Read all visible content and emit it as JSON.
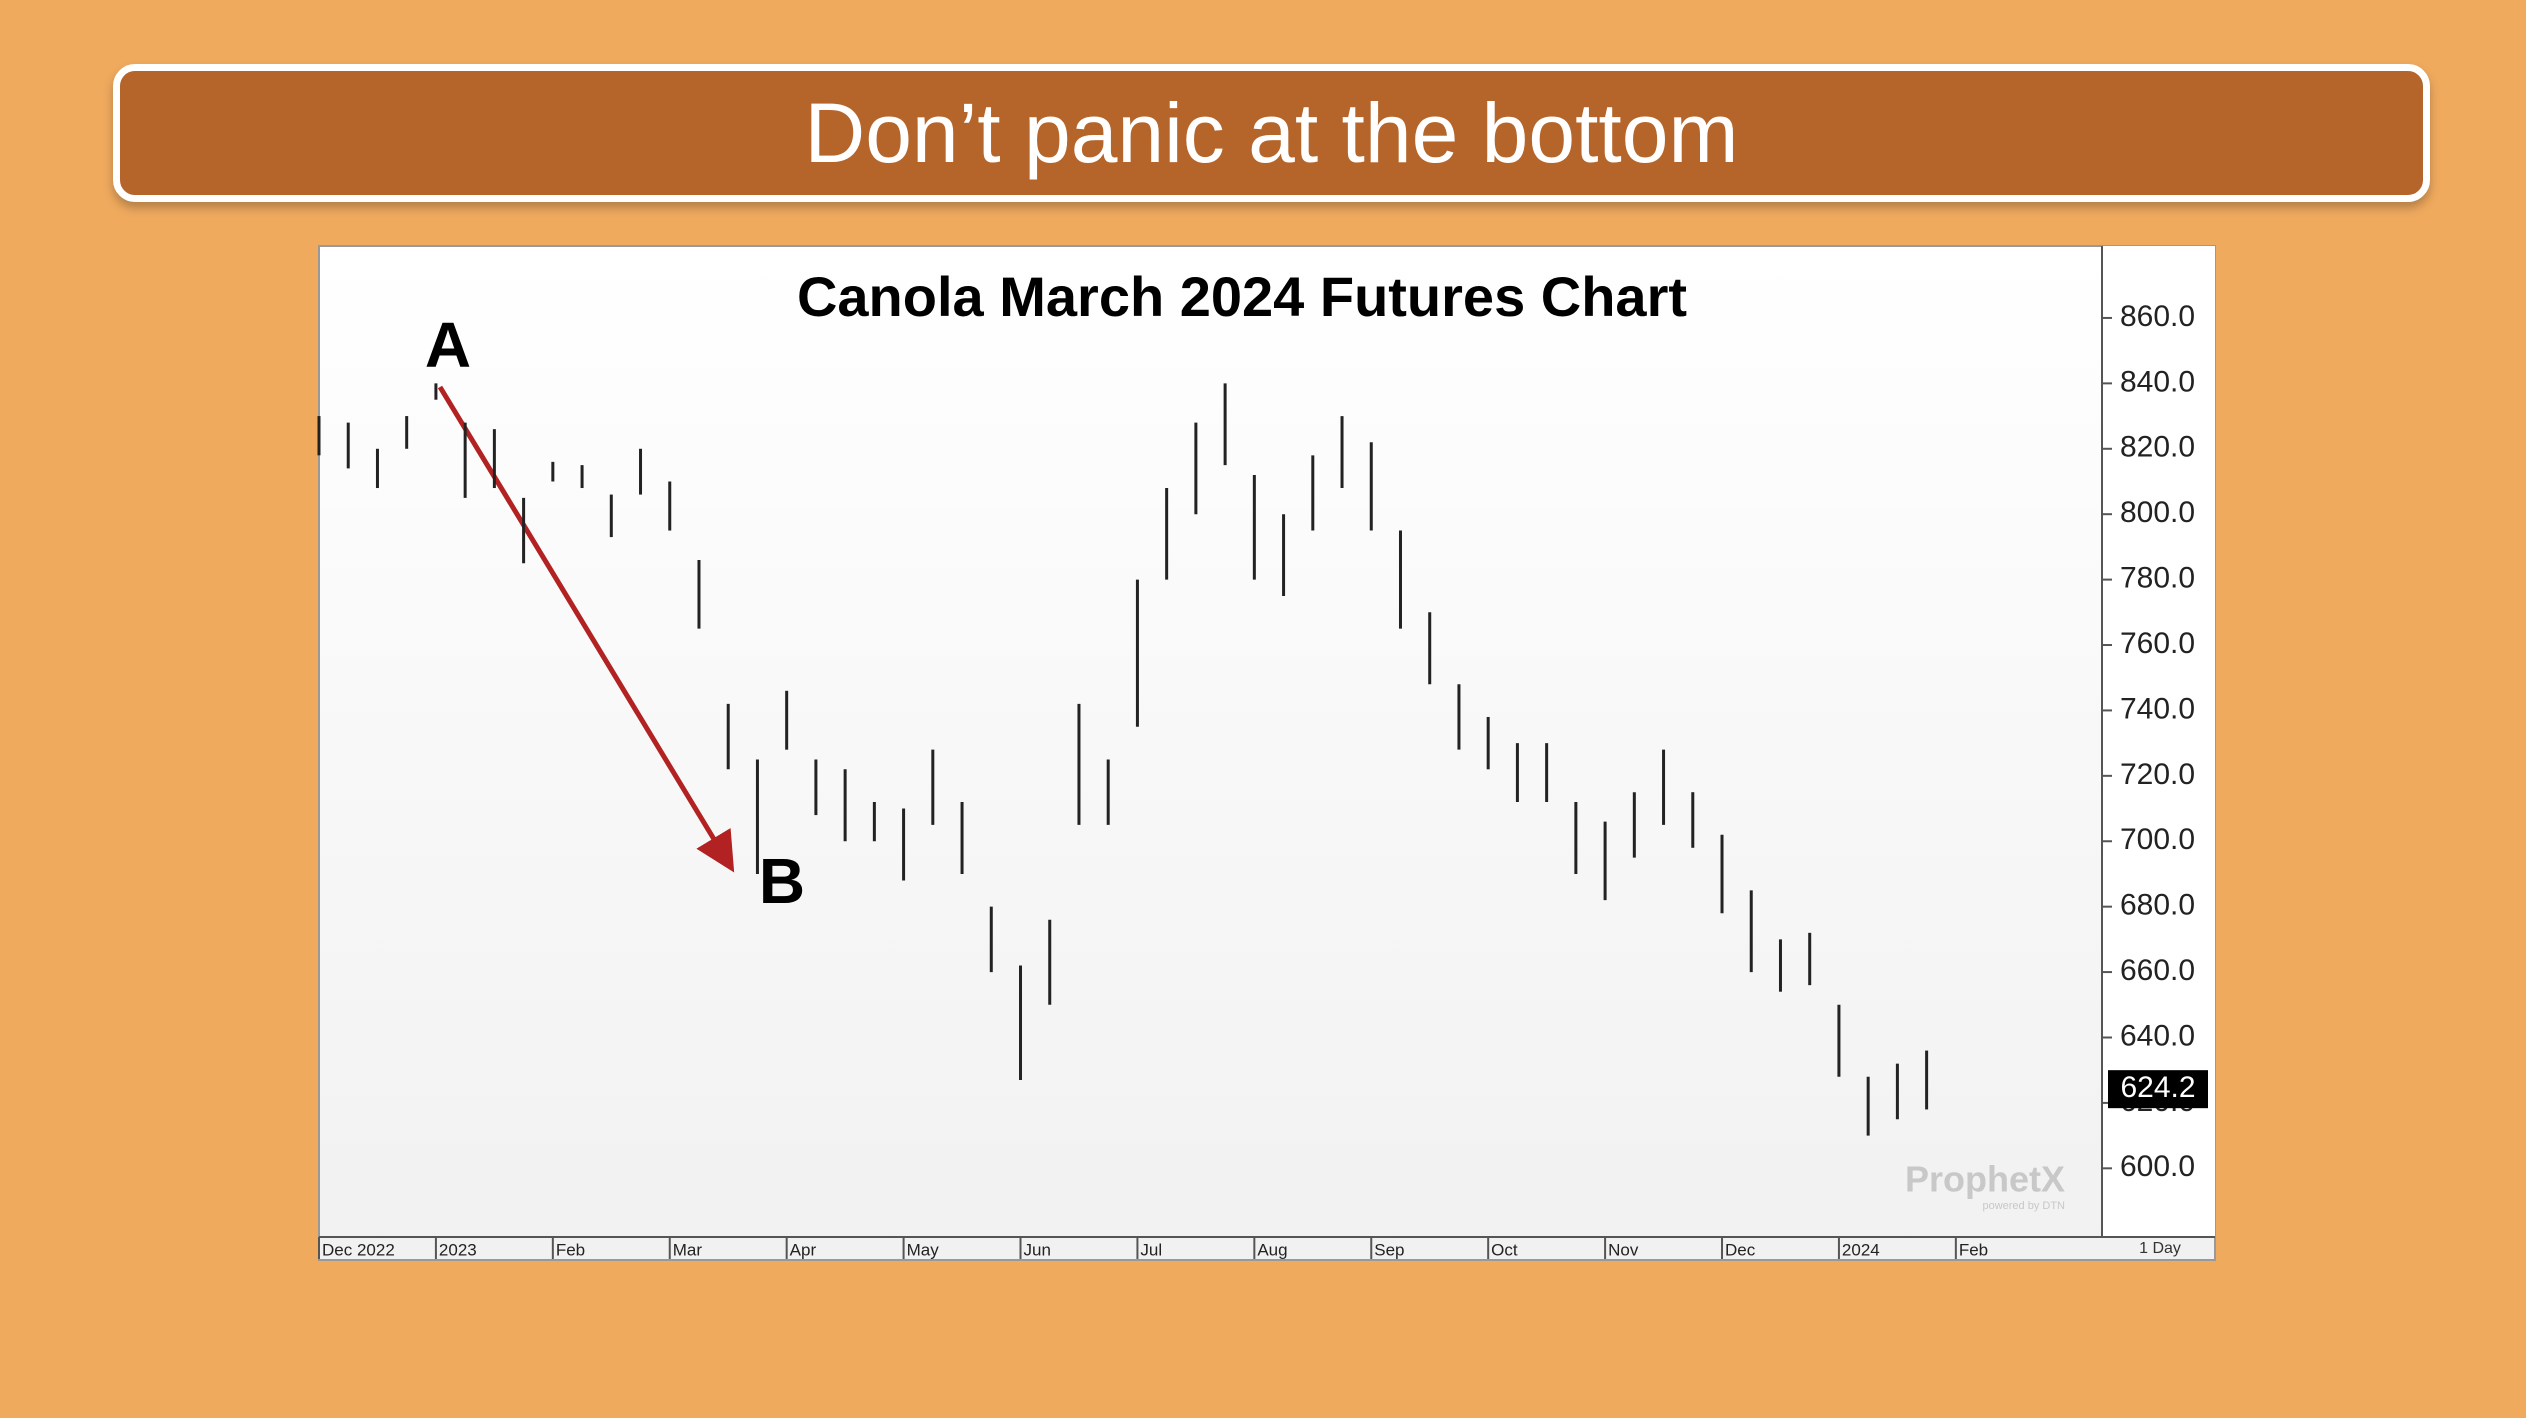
{
  "header": {
    "title": "Don’t panic at the bottom"
  },
  "chart_data": {
    "type": "ohlc",
    "title": "Canola March 2024 Futures Chart",
    "annotations": [
      "A",
      "B"
    ],
    "watermark": "ProphetX",
    "watermark_sub": "powered by DTN",
    "interval": "1 Day",
    "last_value": 624.2,
    "color": "#222222",
    "x": [
      0,
      0.25,
      0.5,
      0.75,
      1,
      1.25,
      1.5,
      1.75,
      2,
      2.25,
      2.5,
      2.75,
      3,
      3.25,
      3.5,
      3.75,
      4,
      4.25,
      4.5,
      4.75,
      5,
      5.25,
      5.5,
      5.75,
      6,
      6.25,
      6.5,
      6.75,
      7,
      7.25,
      7.5,
      7.75,
      8,
      8.25,
      8.5,
      8.75,
      9,
      9.25,
      9.5,
      9.75,
      10,
      10.25,
      10.5,
      10.75,
      11,
      11.25,
      11.5,
      11.75,
      12,
      12.25,
      12.5,
      12.75,
      13,
      13.25,
      13.5,
      13.75
    ],
    "high": [
      830,
      828,
      820,
      830,
      840,
      828,
      826,
      805,
      816,
      815,
      806,
      820,
      810,
      786,
      742,
      725,
      746,
      725,
      722,
      712,
      710,
      728,
      712,
      680,
      662,
      676,
      742,
      725,
      780,
      808,
      828,
      840,
      812,
      800,
      818,
      830,
      822,
      795,
      770,
      748,
      738,
      730,
      730,
      712,
      706,
      715,
      728,
      715,
      702,
      685,
      670,
      672,
      650,
      628,
      632,
      636
    ],
    "low": [
      818,
      814,
      808,
      820,
      835,
      805,
      808,
      785,
      810,
      808,
      793,
      806,
      795,
      765,
      722,
      690,
      728,
      708,
      700,
      700,
      688,
      705,
      690,
      660,
      627,
      650,
      705,
      705,
      735,
      780,
      800,
      815,
      780,
      775,
      795,
      808,
      795,
      765,
      748,
      728,
      722,
      712,
      712,
      690,
      682,
      695,
      705,
      698,
      678,
      660,
      654,
      656,
      628,
      610,
      615,
      618
    ],
    "xlim": [
      0,
      15.25
    ],
    "xticks": [
      {
        "value": 0,
        "label": "Dec 2022"
      },
      {
        "value": 1,
        "label": "2023"
      },
      {
        "value": 2,
        "label": "Feb"
      },
      {
        "value": 3,
        "label": "Mar"
      },
      {
        "value": 4,
        "label": "Apr"
      },
      {
        "value": 5,
        "label": "May"
      },
      {
        "value": 6,
        "label": "Jun"
      },
      {
        "value": 7,
        "label": "Jul"
      },
      {
        "value": 8,
        "label": "Aug"
      },
      {
        "value": 9,
        "label": "Sep"
      },
      {
        "value": 10,
        "label": "Oct"
      },
      {
        "value": 11,
        "label": "Nov"
      },
      {
        "value": 12,
        "label": "Dec"
      },
      {
        "value": 13,
        "label": "2024"
      },
      {
        "value": 14,
        "label": "Feb"
      }
    ],
    "ylim": [
      579,
      882
    ],
    "yticks": [
      {
        "value": 600,
        "label": "600.0"
      },
      {
        "value": 620,
        "label": "620.0"
      },
      {
        "value": 640,
        "label": "640.0"
      },
      {
        "value": 660,
        "label": "660.0"
      },
      {
        "value": 680,
        "label": "680.0"
      },
      {
        "value": 700,
        "label": "700.0"
      },
      {
        "value": 720,
        "label": "720.0"
      },
      {
        "value": 740,
        "label": "740.0"
      },
      {
        "value": 760,
        "label": "760.0"
      },
      {
        "value": 780,
        "label": "780.0"
      },
      {
        "value": 800,
        "label": "800.0"
      },
      {
        "value": 820,
        "label": "820.0"
      },
      {
        "value": 840,
        "label": "840.0"
      },
      {
        "value": 860,
        "label": "860.0"
      }
    ]
  }
}
